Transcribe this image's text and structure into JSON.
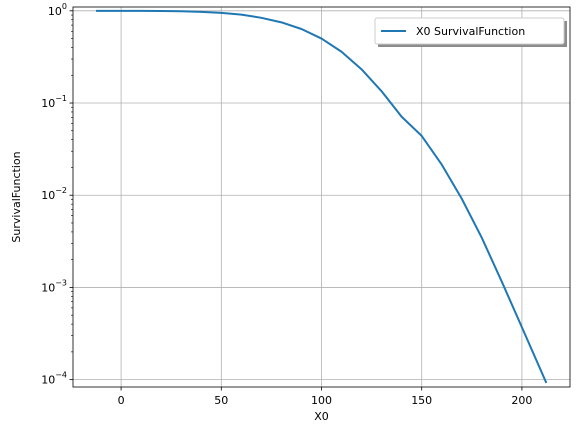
{
  "chart_data": {
    "type": "line",
    "xlabel": "X0",
    "ylabel": "SurvivalFunction",
    "yscale": "log",
    "xlim": [
      -24,
      224
    ],
    "ylim": [
      8.32e-05,
      1.1
    ],
    "grid": true,
    "legend_position": "top-right",
    "x_ticks": [
      {
        "value": 0,
        "label": "0"
      },
      {
        "value": 50,
        "label": "50"
      },
      {
        "value": 100,
        "label": "100"
      },
      {
        "value": 150,
        "label": "150"
      },
      {
        "value": 200,
        "label": "200"
      }
    ],
    "y_ticks": [
      {
        "value": 1,
        "base": "10",
        "exp": "0"
      },
      {
        "value": 0.1,
        "base": "10",
        "exp": "−1"
      },
      {
        "value": 0.01,
        "base": "10",
        "exp": "−2"
      },
      {
        "value": 0.001,
        "base": "10",
        "exp": "−3"
      },
      {
        "value": 0.0001,
        "base": "10",
        "exp": "−4"
      }
    ],
    "series": [
      {
        "name": "X0 SurvivalFunction",
        "color": "#1f77b4",
        "x": [
          -12,
          0,
          10,
          20,
          30,
          40,
          50,
          60,
          70,
          80,
          90,
          100,
          110,
          120,
          130,
          140,
          150,
          160,
          170,
          180,
          190,
          200,
          212
        ],
        "y": [
          1.0,
          1.0,
          0.999,
          0.997,
          0.99,
          0.975,
          0.95,
          0.91,
          0.84,
          0.75,
          0.635,
          0.5,
          0.36,
          0.232,
          0.134,
          0.071,
          0.044,
          0.0215,
          0.00916,
          0.00345,
          0.00115,
          0.00037,
          9.42e-05
        ]
      }
    ]
  }
}
